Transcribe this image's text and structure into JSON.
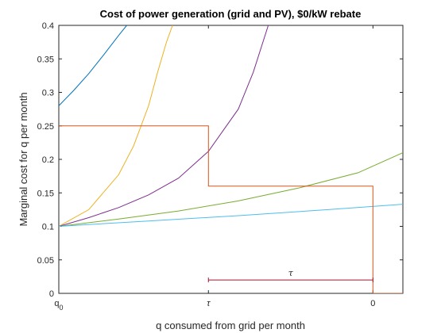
{
  "chart_data": {
    "type": "line",
    "title": "Cost of power generation (grid and PV), $0/kW rebate",
    "xlabel": "q consumed from grid per month",
    "ylabel": "Marginal cost for q per month",
    "xlim": [
      0,
      1.15
    ],
    "ylim": [
      0,
      0.4
    ],
    "x_ticks": [
      {
        "value": 0,
        "label": "q",
        "sub": "0"
      },
      {
        "value": 0.5,
        "label": "τ",
        "sub": ""
      },
      {
        "value": 1.05,
        "label": "0",
        "sub": ""
      }
    ],
    "y_ticks": [
      {
        "value": 0,
        "label": "0"
      },
      {
        "value": 0.05,
        "label": "0.05"
      },
      {
        "value": 0.1,
        "label": "0.1"
      },
      {
        "value": 0.15,
        "label": "0.15"
      },
      {
        "value": 0.2,
        "label": "0.2"
      },
      {
        "value": 0.25,
        "label": "0.25"
      },
      {
        "value": 0.3,
        "label": "0.3"
      },
      {
        "value": 0.35,
        "label": "0.35"
      },
      {
        "value": 0.4,
        "label": "0.4"
      }
    ],
    "grid": false,
    "series": [
      {
        "color": "#0072bd",
        "x": [
          0,
          0.05,
          0.1,
          0.15,
          0.2,
          0.227
        ],
        "y": [
          0.28,
          0.303,
          0.328,
          0.356,
          0.385,
          0.4
        ]
      },
      {
        "color": "#edb120",
        "x": [
          0,
          0.1,
          0.2,
          0.25,
          0.3,
          0.33,
          0.36,
          0.38
        ],
        "y": [
          0.1,
          0.125,
          0.177,
          0.22,
          0.28,
          0.33,
          0.375,
          0.4
        ]
      },
      {
        "color": "#7e2f8e",
        "x": [
          0,
          0.1,
          0.2,
          0.3,
          0.4,
          0.5,
          0.6,
          0.65,
          0.7
        ],
        "y": [
          0.1,
          0.113,
          0.128,
          0.147,
          0.172,
          0.212,
          0.275,
          0.33,
          0.4
        ]
      },
      {
        "color": "#77ac30",
        "x": [
          0,
          0.2,
          0.4,
          0.6,
          0.8,
          1.0,
          1.15
        ],
        "y": [
          0.1,
          0.111,
          0.123,
          0.138,
          0.157,
          0.18,
          0.21
        ]
      },
      {
        "color": "#4dbeee",
        "x": [
          0,
          0.3,
          0.6,
          0.9,
          1.15
        ],
        "y": [
          0.1,
          0.108,
          0.116,
          0.125,
          0.133
        ]
      },
      {
        "color": "#d95319",
        "x": [
          0,
          0.5,
          0.5,
          1.05,
          1.05,
          1.15
        ],
        "y": [
          0.25,
          0.25,
          0.16,
          0.16,
          0,
          0
        ]
      },
      {
        "color": "#a2142f",
        "x": [
          0.5,
          1.05
        ],
        "y": [
          0.02,
          0.02
        ],
        "label": "τ"
      }
    ]
  }
}
